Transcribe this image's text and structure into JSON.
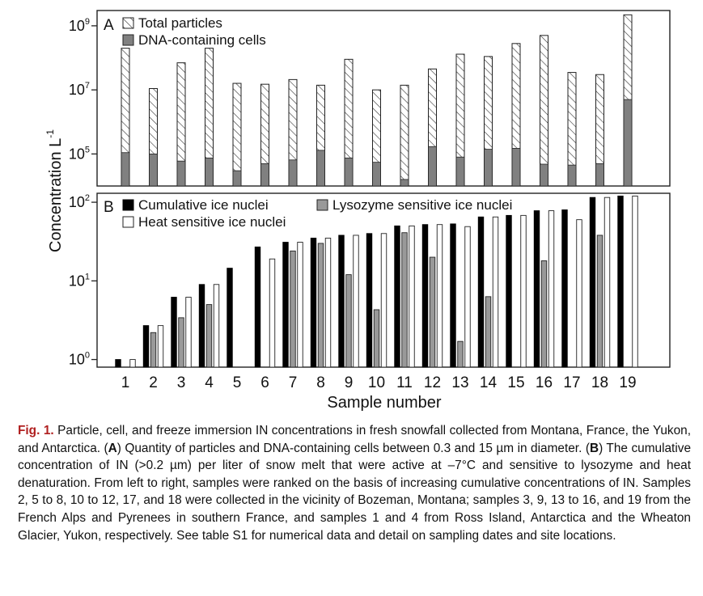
{
  "chart_data": [
    {
      "panel": "A",
      "type": "bar",
      "yscale": "log",
      "ylim": [
        10000,
        3000000000
      ],
      "y_ticks": [
        100000,
        10000000,
        1000000000
      ],
      "y_tick_labels": [
        {
          "base": "10",
          "exp": "5"
        },
        {
          "base": "10",
          "exp": "7"
        },
        {
          "base": "10",
          "exp": "9"
        }
      ],
      "categories": [
        "1",
        "2",
        "3",
        "4",
        "5",
        "6",
        "7",
        "8",
        "9",
        "10",
        "11",
        "12",
        "13",
        "14",
        "15",
        "16",
        "17",
        "18",
        "19"
      ],
      "legend": [
        "Total particles",
        "DNA-containing cells"
      ],
      "legend_position": "top-left",
      "series": [
        {
          "name": "Total particles",
          "pattern": "hatched",
          "values": [
            200000000,
            11000000,
            70000000,
            200000000,
            16000000,
            15000000,
            21000000,
            14000000,
            90000000,
            10000000,
            14000000,
            45000000,
            130000000,
            110000000,
            280000000,
            500000000,
            35000000,
            30000000,
            2200000000
          ]
        },
        {
          "name": "DNA-containing cells",
          "pattern": "gray",
          "values": [
            110000,
            100000,
            60000,
            75000,
            30000,
            50000,
            65000,
            130000,
            75000,
            55000,
            16000,
            170000,
            80000,
            140000,
            150000,
            48000,
            45000,
            50000,
            5000000
          ]
        }
      ],
      "colors": {
        "gray_bar": "#808080",
        "hatch": "#333333"
      }
    },
    {
      "panel": "B",
      "type": "bar",
      "yscale": "log",
      "ylim": [
        0.8,
        130
      ],
      "y_ticks": [
        1,
        10,
        100
      ],
      "y_tick_labels": [
        {
          "base": "10",
          "exp": "0"
        },
        {
          "base": "10",
          "exp": "1"
        },
        {
          "base": "10",
          "exp": "2"
        }
      ],
      "categories": [
        "1",
        "2",
        "3",
        "4",
        "5",
        "6",
        "7",
        "8",
        "9",
        "10",
        "11",
        "12",
        "13",
        "14",
        "15",
        "16",
        "17",
        "18",
        "19"
      ],
      "legend": [
        "Cumulative ice nuclei",
        "Lysozyme sensitive ice nuclei",
        "Heat sensitive ice nuclei"
      ],
      "legend_position": "top-left",
      "series": [
        {
          "name": "Cumulative ice nuclei",
          "color": "#000000",
          "values": [
            1.0,
            2.7,
            6.2,
            9,
            14.5,
            27,
            31,
            35,
            38,
            40,
            50,
            52,
            53,
            65,
            68,
            78,
            80,
            115,
            120
          ]
        },
        {
          "name": "Lysozyme sensitive ice nuclei",
          "color": "#999999",
          "values": [
            null,
            2.2,
            3.4,
            5,
            null,
            null,
            24,
            30,
            12,
            4.3,
            41,
            20,
            1.7,
            6.3,
            null,
            18,
            null,
            38,
            null
          ]
        },
        {
          "name": "Heat sensitive ice nuclei",
          "color": "#ffffff",
          "values": [
            1.0,
            2.7,
            6.2,
            9,
            null,
            19,
            31,
            35,
            38,
            40,
            50,
            52,
            49,
            65,
            68,
            78,
            60,
            115,
            120
          ]
        }
      ]
    }
  ],
  "axes": {
    "xlabel": "Sample number",
    "ylabel": "Concentration L",
    "ylabel_exp": "-1"
  },
  "caption": {
    "fig_label": "Fig. 1.",
    "p1": " Particle, cell, and freeze immersion IN concentrations in fresh snowfall collected from Montana, France, the Yukon, and Antarctica. (",
    "a": "A",
    "p2": ") Quantity of particles and DNA-containing cells between 0.3 and 15 µm in diameter. (",
    "b": "B",
    "p3": ") The cumulative concentration of IN (>0.2 µm) per liter of snow melt that were active at –7°C and sensitive to lysozyme and heat denaturation. From left to right, samples were ranked on the basis of increasing cumulative concentrations of IN. Samples 2, 5 to 8, 10 to 12, 17, and 18 were collected in the vicinity of Bozeman, Montana; samples 3, 9, 13 to 16, and 19 from the French Alps and Pyrenees in southern France, and samples 1 and 4 from Ross Island, Antarctica and the Wheaton Glacier, Yukon, respectively. See table S1 for numerical data and detail on sampling dates and site locations."
  }
}
